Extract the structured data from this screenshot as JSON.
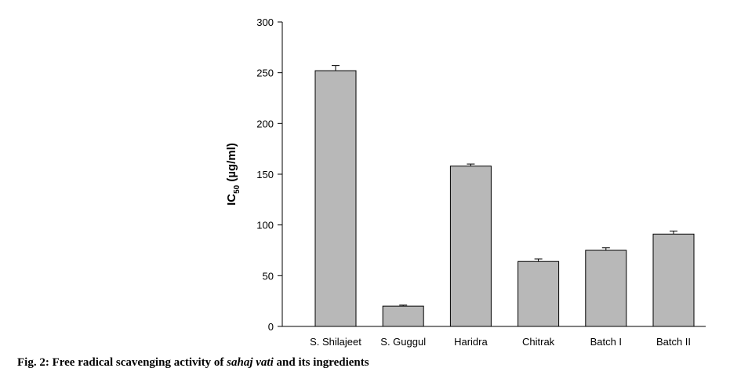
{
  "caption": {
    "prefix": "Fig. 2: Free radical scavenging activity of ",
    "italic": "sahaj vati",
    "suffix": " and its ingredients"
  },
  "chart_data": {
    "type": "bar",
    "categories": [
      "S. Shilajeet",
      "S. Guggul",
      "Haridra",
      "Chitrak",
      "Batch I",
      "Batch II"
    ],
    "values": [
      252,
      20,
      158,
      64,
      75,
      91
    ],
    "errors": [
      5,
      1,
      2,
      2.5,
      2.5,
      3
    ],
    "ylabel_main": "IC",
    "ylabel_sub": "50",
    "ylabel_unit": " (µg/ml)",
    "ylim": [
      0,
      300
    ],
    "yticks": [
      0,
      50,
      100,
      150,
      200,
      250,
      300
    ],
    "bar_color": "#b8b8b8",
    "grid": false
  }
}
